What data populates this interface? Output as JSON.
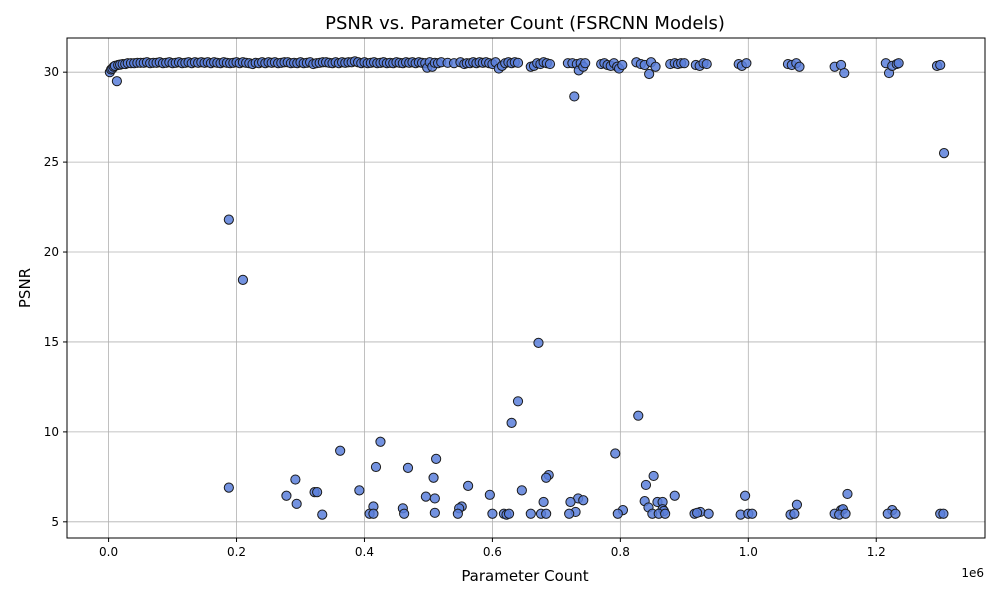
{
  "chart_data": {
    "type": "scatter",
    "title": "PSNR vs. Parameter Count (FSRCNN Models)",
    "xlabel": "Parameter Count",
    "ylabel": "PSNR",
    "x_offset_label": "1e6",
    "x_tick_values": [
      0.0,
      0.2,
      0.4,
      0.6,
      0.8,
      1.0,
      1.2
    ],
    "x_tick_labels": [
      "0.0",
      "0.2",
      "0.4",
      "0.6",
      "0.8",
      "1.0",
      "1.2"
    ],
    "y_tick_values": [
      5,
      10,
      15,
      20,
      25,
      30
    ],
    "y_tick_labels": [
      "5",
      "10",
      "15",
      "20",
      "25",
      "30"
    ],
    "xlim": [
      -0.065,
      1.37
    ],
    "ylim": [
      4.1,
      31.9
    ],
    "grid": true,
    "marker_color": "#5b7fdb",
    "marker_edge_color": "#1a1a1a",
    "x_units": "millions of parameters",
    "points": [
      [
        0.002,
        30.0
      ],
      [
        0.004,
        30.15
      ],
      [
        0.006,
        30.2
      ],
      [
        0.008,
        30.3
      ],
      [
        0.01,
        30.35
      ],
      [
        0.013,
        29.5
      ],
      [
        0.015,
        30.4
      ],
      [
        0.018,
        30.42
      ],
      [
        0.022,
        30.45
      ],
      [
        0.026,
        30.45
      ],
      [
        0.03,
        30.5
      ],
      [
        0.035,
        30.5
      ],
      [
        0.04,
        30.5
      ],
      [
        0.045,
        30.52
      ],
      [
        0.05,
        30.52
      ],
      [
        0.055,
        30.52
      ],
      [
        0.06,
        30.55
      ],
      [
        0.065,
        30.5
      ],
      [
        0.07,
        30.52
      ],
      [
        0.075,
        30.52
      ],
      [
        0.08,
        30.55
      ],
      [
        0.085,
        30.5
      ],
      [
        0.09,
        30.52
      ],
      [
        0.095,
        30.55
      ],
      [
        0.1,
        30.5
      ],
      [
        0.105,
        30.52
      ],
      [
        0.11,
        30.55
      ],
      [
        0.115,
        30.5
      ],
      [
        0.12,
        30.52
      ],
      [
        0.125,
        30.55
      ],
      [
        0.13,
        30.5
      ],
      [
        0.135,
        30.55
      ],
      [
        0.14,
        30.52
      ],
      [
        0.145,
        30.55
      ],
      [
        0.15,
        30.52
      ],
      [
        0.155,
        30.55
      ],
      [
        0.16,
        30.5
      ],
      [
        0.165,
        30.55
      ],
      [
        0.17,
        30.52
      ],
      [
        0.175,
        30.5
      ],
      [
        0.18,
        30.55
      ],
      [
        0.185,
        30.52
      ],
      [
        0.19,
        30.5
      ],
      [
        0.195,
        30.52
      ],
      [
        0.2,
        30.55
      ],
      [
        0.205,
        30.5
      ],
      [
        0.21,
        30.55
      ],
      [
        0.215,
        30.52
      ],
      [
        0.22,
        30.5
      ],
      [
        0.225,
        30.45
      ],
      [
        0.23,
        30.52
      ],
      [
        0.235,
        30.5
      ],
      [
        0.24,
        30.55
      ],
      [
        0.245,
        30.5
      ],
      [
        0.25,
        30.55
      ],
      [
        0.255,
        30.52
      ],
      [
        0.26,
        30.55
      ],
      [
        0.265,
        30.5
      ],
      [
        0.27,
        30.52
      ],
      [
        0.275,
        30.55
      ],
      [
        0.28,
        30.55
      ],
      [
        0.285,
        30.5
      ],
      [
        0.29,
        30.52
      ],
      [
        0.295,
        30.5
      ],
      [
        0.3,
        30.55
      ],
      [
        0.305,
        30.5
      ],
      [
        0.31,
        30.52
      ],
      [
        0.315,
        30.55
      ],
      [
        0.32,
        30.45
      ],
      [
        0.325,
        30.5
      ],
      [
        0.33,
        30.52
      ],
      [
        0.335,
        30.55
      ],
      [
        0.34,
        30.55
      ],
      [
        0.345,
        30.52
      ],
      [
        0.35,
        30.5
      ],
      [
        0.355,
        30.55
      ],
      [
        0.36,
        30.5
      ],
      [
        0.365,
        30.55
      ],
      [
        0.37,
        30.52
      ],
      [
        0.375,
        30.55
      ],
      [
        0.38,
        30.55
      ],
      [
        0.385,
        30.6
      ],
      [
        0.39,
        30.55
      ],
      [
        0.395,
        30.5
      ],
      [
        0.4,
        30.55
      ],
      [
        0.405,
        30.5
      ],
      [
        0.41,
        30.52
      ],
      [
        0.415,
        30.55
      ],
      [
        0.42,
        30.5
      ],
      [
        0.425,
        30.52
      ],
      [
        0.43,
        30.55
      ],
      [
        0.435,
        30.5
      ],
      [
        0.44,
        30.52
      ],
      [
        0.445,
        30.5
      ],
      [
        0.45,
        30.55
      ],
      [
        0.455,
        30.52
      ],
      [
        0.46,
        30.5
      ],
      [
        0.465,
        30.55
      ],
      [
        0.47,
        30.52
      ],
      [
        0.475,
        30.55
      ],
      [
        0.48,
        30.5
      ],
      [
        0.485,
        30.55
      ],
      [
        0.49,
        30.52
      ],
      [
        0.495,
        30.5
      ],
      [
        0.498,
        30.25
      ],
      [
        0.502,
        30.55
      ],
      [
        0.506,
        30.3
      ],
      [
        0.51,
        30.52
      ],
      [
        0.515,
        30.5
      ],
      [
        0.52,
        30.55
      ],
      [
        0.53,
        30.52
      ],
      [
        0.54,
        30.5
      ],
      [
        0.55,
        30.55
      ],
      [
        0.556,
        30.45
      ],
      [
        0.56,
        30.5
      ],
      [
        0.565,
        30.5
      ],
      [
        0.57,
        30.55
      ],
      [
        0.575,
        30.5
      ],
      [
        0.58,
        30.55
      ],
      [
        0.585,
        30.52
      ],
      [
        0.59,
        30.55
      ],
      [
        0.595,
        30.5
      ],
      [
        0.6,
        30.45
      ],
      [
        0.605,
        30.55
      ],
      [
        0.61,
        30.2
      ],
      [
        0.615,
        30.35
      ],
      [
        0.62,
        30.5
      ],
      [
        0.625,
        30.55
      ],
      [
        0.63,
        30.5
      ],
      [
        0.635,
        30.55
      ],
      [
        0.64,
        30.52
      ],
      [
        0.66,
        30.3
      ],
      [
        0.665,
        30.35
      ],
      [
        0.67,
        30.5
      ],
      [
        0.675,
        30.45
      ],
      [
        0.68,
        30.55
      ],
      [
        0.685,
        30.5
      ],
      [
        0.69,
        30.45
      ],
      [
        0.718,
        30.5
      ],
      [
        0.725,
        30.5
      ],
      [
        0.728,
        28.65
      ],
      [
        0.732,
        30.45
      ],
      [
        0.735,
        30.1
      ],
      [
        0.738,
        30.5
      ],
      [
        0.742,
        30.3
      ],
      [
        0.745,
        30.5
      ],
      [
        0.77,
        30.45
      ],
      [
        0.775,
        30.5
      ],
      [
        0.78,
        30.4
      ],
      [
        0.785,
        30.35
      ],
      [
        0.79,
        30.5
      ],
      [
        0.795,
        30.3
      ],
      [
        0.798,
        30.2
      ],
      [
        0.803,
        30.4
      ],
      [
        0.825,
        30.55
      ],
      [
        0.832,
        30.45
      ],
      [
        0.838,
        30.4
      ],
      [
        0.845,
        29.9
      ],
      [
        0.848,
        30.55
      ],
      [
        0.855,
        30.3
      ],
      [
        0.878,
        30.45
      ],
      [
        0.885,
        30.5
      ],
      [
        0.89,
        30.45
      ],
      [
        0.895,
        30.5
      ],
      [
        0.9,
        30.5
      ],
      [
        0.918,
        30.4
      ],
      [
        0.924,
        30.35
      ],
      [
        0.93,
        30.5
      ],
      [
        0.935,
        30.45
      ],
      [
        0.985,
        30.45
      ],
      [
        0.99,
        30.35
      ],
      [
        0.997,
        30.5
      ],
      [
        1.062,
        30.45
      ],
      [
        1.068,
        30.4
      ],
      [
        1.075,
        30.5
      ],
      [
        1.08,
        30.3
      ],
      [
        1.135,
        30.3
      ],
      [
        1.145,
        30.4
      ],
      [
        1.15,
        29.95
      ],
      [
        1.215,
        30.5
      ],
      [
        1.22,
        29.95
      ],
      [
        1.225,
        30.35
      ],
      [
        1.232,
        30.45
      ],
      [
        1.235,
        30.5
      ],
      [
        1.295,
        30.35
      ],
      [
        1.3,
        30.4
      ],
      [
        1.306,
        25.5
      ],
      [
        0.188,
        21.8
      ],
      [
        0.21,
        18.45
      ],
      [
        0.672,
        14.95
      ],
      [
        0.64,
        11.7
      ],
      [
        0.63,
        10.5
      ],
      [
        0.828,
        10.9
      ],
      [
        0.425,
        9.45
      ],
      [
        0.362,
        8.95
      ],
      [
        0.792,
        8.8
      ],
      [
        0.512,
        8.5
      ],
      [
        0.418,
        8.05
      ],
      [
        0.468,
        8.0
      ],
      [
        0.688,
        7.6
      ],
      [
        0.684,
        7.45
      ],
      [
        0.852,
        7.55
      ],
      [
        0.508,
        7.45
      ],
      [
        0.292,
        7.35
      ],
      [
        0.84,
        7.05
      ],
      [
        0.562,
        7.0
      ],
      [
        0.188,
        6.9
      ],
      [
        0.392,
        6.75
      ],
      [
        0.322,
        6.65
      ],
      [
        0.326,
        6.65
      ],
      [
        0.646,
        6.75
      ],
      [
        0.278,
        6.45
      ],
      [
        0.496,
        6.4
      ],
      [
        0.596,
        6.5
      ],
      [
        0.885,
        6.45
      ],
      [
        0.995,
        6.45
      ],
      [
        1.155,
        6.55
      ],
      [
        0.51,
        6.3
      ],
      [
        0.734,
        6.3
      ],
      [
        0.742,
        6.2
      ],
      [
        0.68,
        6.1
      ],
      [
        0.722,
        6.1
      ],
      [
        0.838,
        6.15
      ],
      [
        0.858,
        6.1
      ],
      [
        0.866,
        6.1
      ],
      [
        0.294,
        6.0
      ],
      [
        1.076,
        5.95
      ],
      [
        0.414,
        5.85
      ],
      [
        0.552,
        5.85
      ],
      [
        0.548,
        5.75
      ],
      [
        0.46,
        5.75
      ],
      [
        0.844,
        5.8
      ],
      [
        0.866,
        5.7
      ],
      [
        0.868,
        5.6
      ],
      [
        0.804,
        5.65
      ],
      [
        0.73,
        5.55
      ],
      [
        0.925,
        5.55
      ],
      [
        1.145,
        5.65
      ],
      [
        1.148,
        5.7
      ],
      [
        1.225,
        5.65
      ],
      [
        0.51,
        5.5
      ],
      [
        0.462,
        5.45
      ],
      [
        0.546,
        5.45
      ],
      [
        0.334,
        5.4
      ],
      [
        0.408,
        5.45
      ],
      [
        0.414,
        5.45
      ],
      [
        0.6,
        5.45
      ],
      [
        0.618,
        5.45
      ],
      [
        0.622,
        5.4
      ],
      [
        0.626,
        5.45
      ],
      [
        0.66,
        5.45
      ],
      [
        0.676,
        5.45
      ],
      [
        0.684,
        5.45
      ],
      [
        0.72,
        5.45
      ],
      [
        0.796,
        5.45
      ],
      [
        0.85,
        5.45
      ],
      [
        0.86,
        5.45
      ],
      [
        0.87,
        5.45
      ],
      [
        0.916,
        5.45
      ],
      [
        0.92,
        5.5
      ],
      [
        0.938,
        5.45
      ],
      [
        0.988,
        5.4
      ],
      [
        1.0,
        5.45
      ],
      [
        1.006,
        5.45
      ],
      [
        1.066,
        5.4
      ],
      [
        1.072,
        5.45
      ],
      [
        1.135,
        5.45
      ],
      [
        1.142,
        5.4
      ],
      [
        1.152,
        5.45
      ],
      [
        1.218,
        5.45
      ],
      [
        1.23,
        5.45
      ],
      [
        1.3,
        5.45
      ],
      [
        1.305,
        5.45
      ]
    ]
  }
}
